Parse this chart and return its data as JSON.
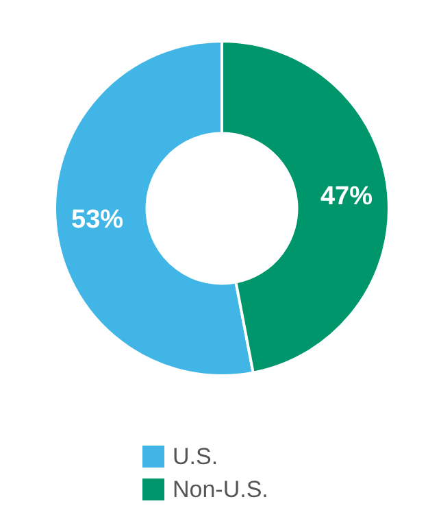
{
  "chart_data": {
    "type": "donut",
    "categories": [
      "U.S.",
      "Non-U.S."
    ],
    "values": [
      53,
      47
    ],
    "colors": [
      "#41b6e6",
      "#00966c"
    ],
    "value_labels": [
      "53%",
      "47%"
    ],
    "legend": "bottom"
  }
}
